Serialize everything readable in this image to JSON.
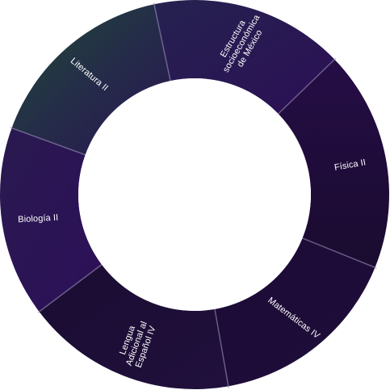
{
  "wheel": {
    "segments": [
      {
        "id": "literatura",
        "lines": [
          "Literatura II"
        ],
        "color": "#23453a"
      },
      {
        "id": "estructura",
        "lines": [
          "Estructura",
          "socioeconómica",
          "de México"
        ],
        "color": "#2a124f"
      },
      {
        "id": "fisica",
        "lines": [
          "Física II"
        ],
        "color": "#1f0c3a"
      },
      {
        "id": "matematicas",
        "lines": [
          "Matemáticas IV"
        ],
        "color": "#1d0c35"
      },
      {
        "id": "lengua",
        "lines": [
          "Lengua",
          "Adicional al",
          "Español IV"
        ],
        "color": "#1e0f3a"
      },
      {
        "id": "biologia",
        "lines": [
          "Biología II"
        ],
        "color": "#2a1250"
      }
    ]
  }
}
